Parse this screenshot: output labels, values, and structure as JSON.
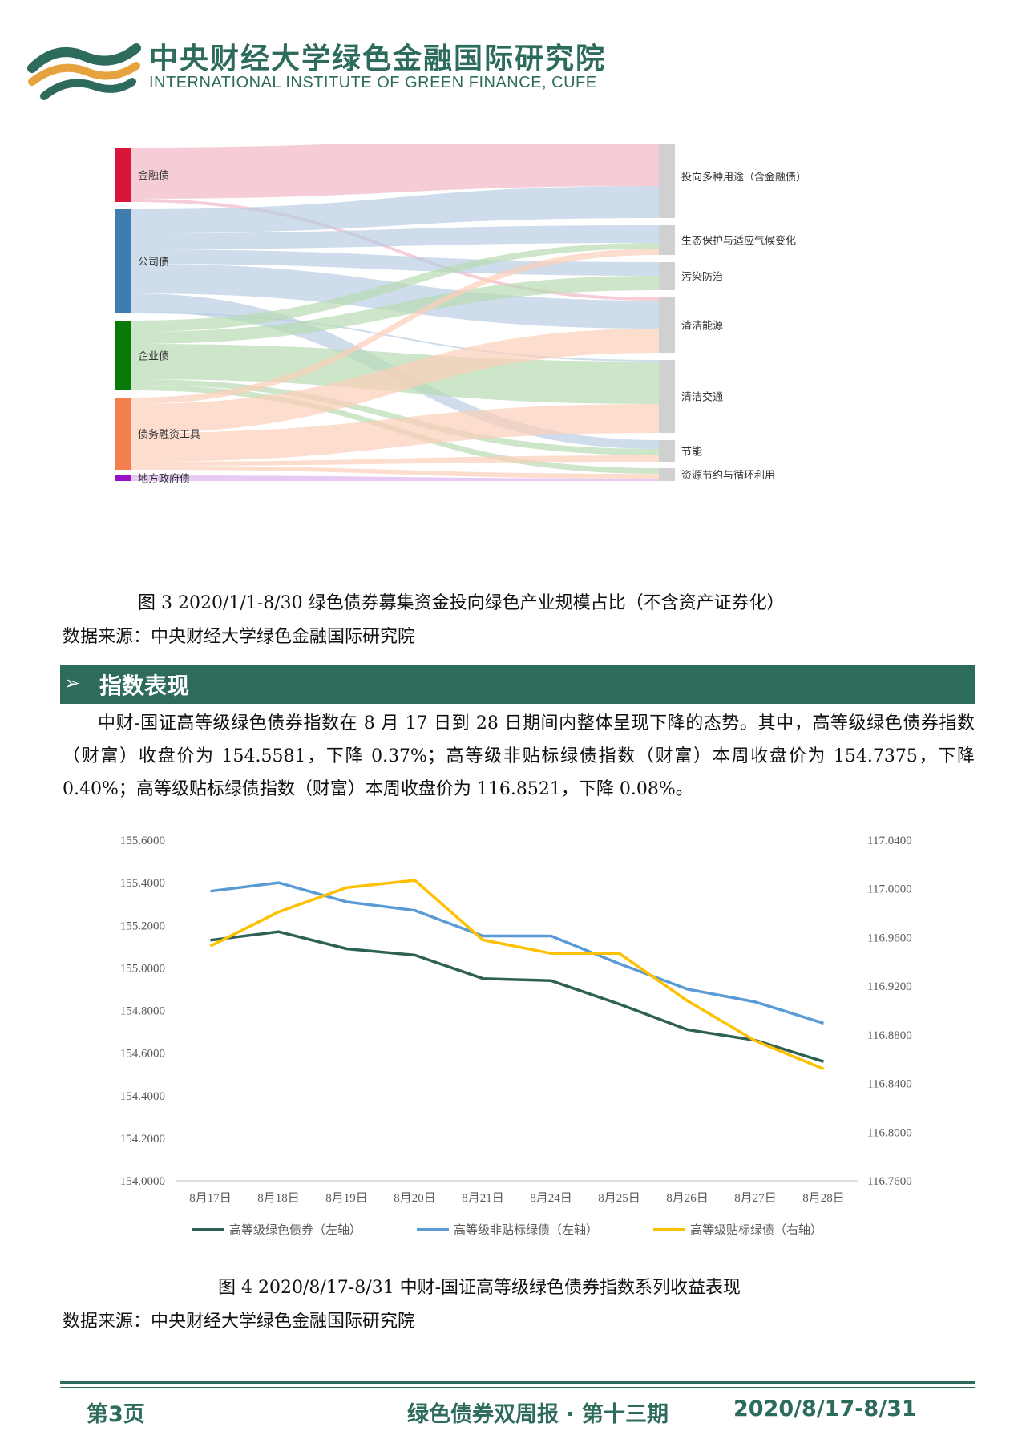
{
  "header": {
    "title_cn": "中央财经大学绿色金融国际研究院",
    "title_en": "INTERNATIONAL INSTITUTE OF GREEN FINANCE, CUFE"
  },
  "sankey": {
    "sources": [
      {
        "label": "金融债",
        "color": "#d7163a"
      },
      {
        "label": "公司债",
        "color": "#3f7cb0"
      },
      {
        "label": "企业债",
        "color": "#087a08"
      },
      {
        "label": "债务融资工具",
        "color": "#f37f50"
      },
      {
        "label": "地方政府债",
        "color": "#9b12c6"
      }
    ],
    "targets": [
      {
        "label": "投向多种用途（含金融债）"
      },
      {
        "label": "生态保护与适应气候变化"
      },
      {
        "label": "污染防治"
      },
      {
        "label": "清洁能源"
      },
      {
        "label": "清洁交通"
      },
      {
        "label": "节能"
      },
      {
        "label": "资源节约与循环利用"
      }
    ]
  },
  "figure3": {
    "caption": "图  3    2020/1/1-8/30 绿色债券募集资金投向绿色产业规模占比（不含资产证券化）",
    "source": "数据来源：中央财经大学绿色金融国际研究院"
  },
  "section": {
    "arrow": "➢",
    "title": "指数表现"
  },
  "paragraph": "中财-国证高等级绿色债券指数在 8 月 17 日到 28 日期间内整体呈现下降的态势。其中，高等级绿色债券指数（财富）收盘价为 154.5581，下降 0.37%；高等级非贴标绿债指数（财富）本周收盘价为 154.7375，下降 0.40%；高等级贴标绿债指数（财富）本周收盘价为 116.8521，下降 0.08%。",
  "chart_data": {
    "type": "line",
    "categories": [
      "8月17日",
      "8月18日",
      "8月19日",
      "8月20日",
      "8月21日",
      "8月24日",
      "8月25日",
      "8月26日",
      "8月27日",
      "8月28日"
    ],
    "y_left": {
      "ticks": [
        "155.6000",
        "155.4000",
        "155.2000",
        "155.0000",
        "154.8000",
        "154.6000",
        "154.4000",
        "154.2000",
        "154.0000"
      ],
      "ylim": [
        154.0,
        155.6
      ]
    },
    "y_right": {
      "ticks": [
        "117.0400",
        "117.0000",
        "116.9600",
        "116.9200",
        "116.8800",
        "116.8400",
        "116.8000",
        "116.7600"
      ],
      "ylim": [
        116.76,
        117.04
      ]
    },
    "series": [
      {
        "name": "高等级绿色债券（左轴）",
        "axis": "left",
        "color": "#2e6155",
        "values": [
          155.13,
          155.17,
          155.09,
          155.06,
          154.95,
          154.94,
          154.83,
          154.71,
          154.66,
          154.56
        ]
      },
      {
        "name": "高等级非贴标绿债（左轴）",
        "axis": "left",
        "color": "#5b9bd5",
        "values": [
          155.36,
          155.4,
          155.31,
          155.27,
          155.15,
          155.15,
          155.02,
          154.9,
          154.84,
          154.74
        ]
      },
      {
        "name": "高等级贴标绿债（右轴）",
        "axis": "right",
        "color": "#ffc000",
        "values": [
          116.953,
          116.981,
          117.001,
          117.007,
          116.958,
          116.947,
          116.947,
          116.908,
          116.875,
          116.852
        ]
      }
    ],
    "grid": false,
    "legend": "bottom"
  },
  "figure4": {
    "caption": "图  4    2020/8/17-8/31 中财-国证高等级绿色债券指数系列收益表现",
    "source": "数据来源：中央财经大学绿色金融国际研究院"
  },
  "footer": {
    "page": "第3页",
    "title": "绿色债券双周报 · 第十三期",
    "date": "2020/8/17-8/31"
  }
}
